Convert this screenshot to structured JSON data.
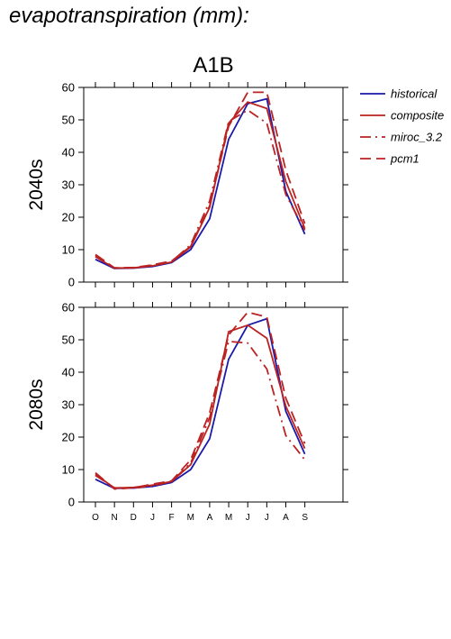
{
  "title": "evapotranspiration (mm):",
  "chart_data": {
    "type": "line",
    "title": "A1B",
    "categories": [
      "O",
      "N",
      "D",
      "J",
      "F",
      "M",
      "A",
      "M",
      "J",
      "J",
      "A",
      "S"
    ],
    "ylim": [
      0,
      60
    ],
    "yticks": [
      0,
      10,
      20,
      30,
      40,
      50,
      60
    ],
    "legend_position": "top-right outside",
    "series_styles": [
      {
        "name": "historical",
        "color": "#1a1aaa",
        "dash": "solid"
      },
      {
        "name": "composite",
        "color": "#bb2222",
        "dash": "solid"
      },
      {
        "name": "miroc_3.2",
        "color": "#bb2222",
        "dash": "dashdot"
      },
      {
        "name": "pcm1",
        "color": "#bb2222",
        "dash": "dashed"
      }
    ],
    "panels": [
      {
        "label": "2040s",
        "series": [
          {
            "name": "historical",
            "values": [
              7.0,
              4.2,
              4.3,
              4.8,
              6.0,
              10.0,
              19.5,
              44.0,
              55.0,
              56.5,
              28.0,
              14.8
            ]
          },
          {
            "name": "composite",
            "values": [
              7.8,
              4.3,
              4.4,
              5.0,
              6.2,
              10.8,
              23.0,
              49.0,
              55.5,
              53.5,
              31.0,
              16.5
            ]
          },
          {
            "name": "miroc_3.2",
            "values": [
              8.2,
              4.4,
              4.3,
              5.2,
              6.3,
              11.5,
              25.0,
              49.5,
              53.0,
              49.0,
              27.0,
              16.0
            ]
          },
          {
            "name": "pcm1",
            "values": [
              8.5,
              4.4,
              4.5,
              5.3,
              6.5,
              11.0,
              23.5,
              48.0,
              58.5,
              58.5,
              34.5,
              18.0
            ]
          }
        ]
      },
      {
        "label": "2080s",
        "series": [
          {
            "name": "historical",
            "values": [
              7.0,
              4.2,
              4.3,
              4.8,
              6.0,
              10.0,
              19.5,
              44.0,
              54.5,
              56.5,
              28.0,
              14.8
            ]
          },
          {
            "name": "composite",
            "values": [
              8.5,
              4.3,
              4.5,
              5.2,
              6.3,
              11.5,
              24.0,
              52.5,
              54.5,
              50.5,
              29.5,
              16.5
            ]
          },
          {
            "name": "miroc_3.2",
            "values": [
              8.2,
              4.4,
              4.3,
              5.0,
              6.3,
              12.0,
              26.0,
              49.5,
              49.0,
              41.0,
              20.5,
              13.0
            ]
          },
          {
            "name": "pcm1",
            "values": [
              9.0,
              4.0,
              4.4,
              5.5,
              6.5,
              13.0,
              27.5,
              51.5,
              58.5,
              57.0,
              32.0,
              18.0
            ]
          }
        ]
      }
    ]
  }
}
